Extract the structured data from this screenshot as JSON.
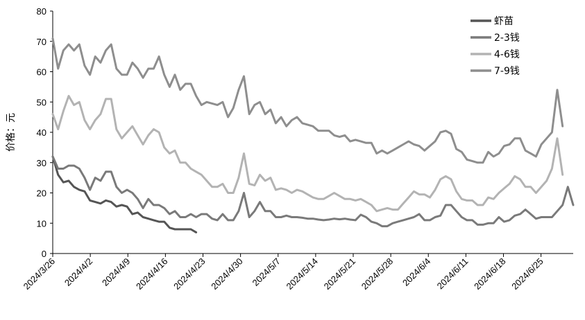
{
  "chart_data": {
    "type": "line",
    "ylabel": "价格：元",
    "ylim": [
      0,
      80
    ],
    "yticks": [
      0,
      10,
      20,
      30,
      40,
      50,
      60,
      70,
      80
    ],
    "x_ticks": [
      "2024/3/26",
      "2024/4/2",
      "2024/4/9",
      "2024/4/16",
      "2024/4/23",
      "2024/4/30",
      "2024/5/7",
      "2024/5/14",
      "2024/5/21",
      "2024/5/28",
      "2024/6/4",
      "2024/6/11",
      "2024/6/18",
      "2024/6/25"
    ],
    "x_start": "2024/3/26",
    "x_end": "2024/7/1",
    "grid": false,
    "legend_position": "top-right",
    "series": [
      {
        "name": "虾苗",
        "color": "#555555",
        "values": [
          32,
          26,
          23.5,
          24,
          22,
          21,
          20.5,
          17.5,
          17,
          16.5,
          17.5,
          17,
          15.5,
          16,
          15.5,
          13,
          13.5,
          12,
          11.5,
          11,
          10.5,
          10.5,
          8.5,
          8,
          8,
          8,
          8,
          7
        ]
      },
      {
        "name": "2-3钱",
        "color": "#7a7a7a",
        "values": [
          32,
          28,
          28,
          29,
          29,
          28,
          25,
          21,
          25,
          24,
          27,
          27,
          22,
          20,
          21,
          20,
          18,
          15,
          18,
          16,
          16,
          15,
          13,
          14,
          12,
          12,
          13,
          12,
          13,
          13,
          11.5,
          11,
          13,
          11,
          11,
          14,
          20,
          12,
          14,
          17,
          14,
          14,
          12,
          12,
          12.5,
          12,
          12,
          11.8,
          11.5,
          11.5,
          11.2,
          11,
          11.2,
          11.5,
          11.3,
          11.5,
          11.2,
          11,
          12.8,
          12,
          10.5,
          10,
          9,
          9,
          10,
          10.5,
          11,
          11.5,
          12,
          13,
          11,
          11,
          12,
          12.5,
          16,
          16,
          14,
          12,
          11,
          11,
          9.5,
          9.5,
          10,
          10,
          12,
          10.5,
          11,
          12.5,
          13,
          14.5,
          13,
          11.5,
          12,
          12,
          12,
          14,
          16,
          22,
          16
        ]
      },
      {
        "name": "4-6钱",
        "color": "#b3b3b3",
        "values": [
          46,
          41,
          47,
          52,
          49,
          50,
          44,
          41,
          44,
          46,
          51,
          51,
          41,
          38,
          40,
          42,
          39,
          36,
          39,
          41,
          40,
          35,
          33,
          34,
          30,
          30,
          28,
          27,
          26,
          24,
          22,
          22,
          23,
          20,
          20,
          25,
          33,
          23,
          22.5,
          26,
          24,
          25,
          21,
          21.5,
          21,
          20,
          21,
          20.5,
          19.5,
          18.5,
          18,
          18,
          19,
          20,
          19,
          18,
          18,
          17.5,
          18,
          17,
          16,
          14,
          14.5,
          15,
          14.5,
          14.5,
          16.5,
          18.5,
          20.5,
          19.5,
          19.5,
          18.5,
          21,
          24.5,
          25.5,
          24.5,
          20.5,
          18,
          17.5,
          17.5,
          16,
          16,
          18.5,
          18,
          20,
          21.5,
          23,
          25.5,
          24.5,
          22,
          22,
          20,
          22,
          24,
          28,
          38,
          26
        ]
      },
      {
        "name": "7-9钱",
        "color": "#8e8e8e",
        "values": [
          71,
          61,
          67,
          69,
          67,
          69,
          62,
          59,
          65,
          63,
          67,
          69,
          61,
          59,
          59,
          63,
          61,
          58,
          61,
          61,
          65,
          59,
          55,
          59,
          54,
          56,
          56,
          52,
          49,
          50,
          49.5,
          49,
          50,
          45,
          48,
          54,
          58.5,
          46,
          49,
          50,
          46,
          47.5,
          43,
          45,
          42,
          44,
          45,
          43,
          42.5,
          42,
          40.5,
          40.5,
          40.5,
          39,
          38.5,
          39,
          37,
          37.5,
          37,
          36.5,
          36.5,
          33,
          34,
          33,
          34,
          35,
          36,
          37,
          36,
          35.5,
          34,
          35.5,
          37,
          40,
          40.5,
          39.5,
          34.5,
          33.5,
          31,
          30.5,
          30,
          30,
          33.5,
          32,
          33,
          35.5,
          36,
          38,
          38,
          34,
          33,
          32,
          36,
          38,
          40,
          54,
          42
        ]
      }
    ]
  }
}
